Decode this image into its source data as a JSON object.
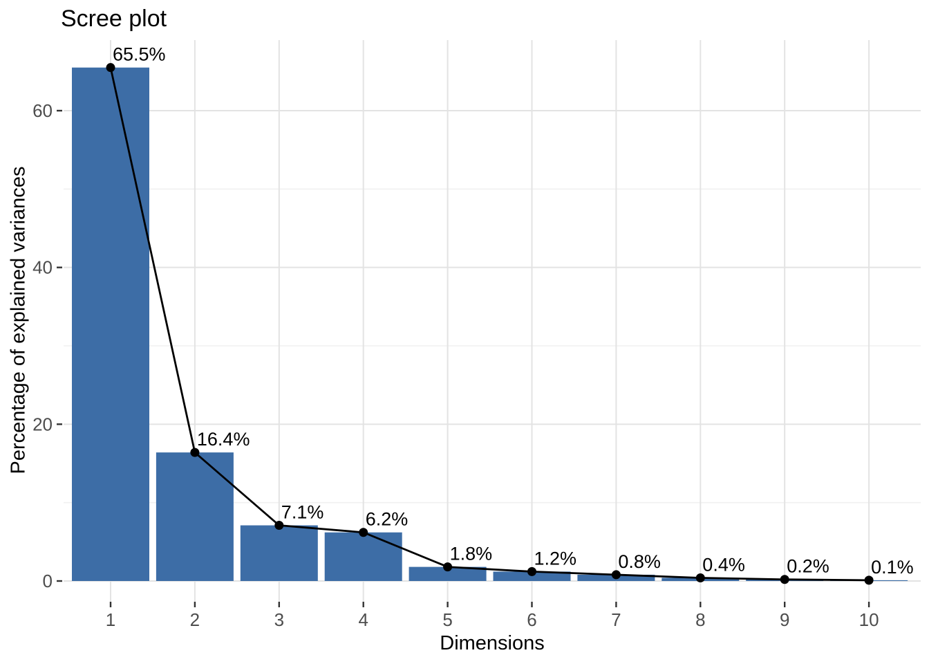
{
  "chart_data": {
    "type": "bar",
    "subtype": "scree plot (bars with connected line and point markers)",
    "title": "Scree plot",
    "xlabel": "Dimensions",
    "ylabel": "Percentage of explained variances",
    "categories": [
      "1",
      "2",
      "3",
      "4",
      "5",
      "6",
      "7",
      "8",
      "9",
      "10"
    ],
    "values": [
      65.5,
      16.4,
      7.1,
      6.2,
      1.8,
      1.2,
      0.8,
      0.4,
      0.2,
      0.1
    ],
    "point_labels": [
      "65.5%",
      "16.4%",
      "7.1%",
      "6.2%",
      "1.8%",
      "1.2%",
      "0.8%",
      "0.4%",
      "0.2%",
      "0.1%"
    ],
    "ytick_labels": [
      "0",
      "20",
      "40",
      "60"
    ],
    "yticks": [
      0,
      20,
      40,
      60
    ],
    "yticks_minor": [
      10,
      30,
      50
    ],
    "ylim": [
      -2.6,
      69.1
    ],
    "grid": "horizontal major+minor, vertical major at each dimension",
    "legend_position": "none",
    "colors": {
      "bar_fill": "#3d6da6",
      "line": "#000000",
      "point": "#000000",
      "value_label": "#000000",
      "title": "#000000",
      "axis_title": "#000000",
      "tick_label": "#4d4d4d",
      "tick_mark": "#333333",
      "grid_major": "#e3e3e3",
      "grid_minor": "#f0f0f0",
      "background": "#ffffff"
    }
  }
}
